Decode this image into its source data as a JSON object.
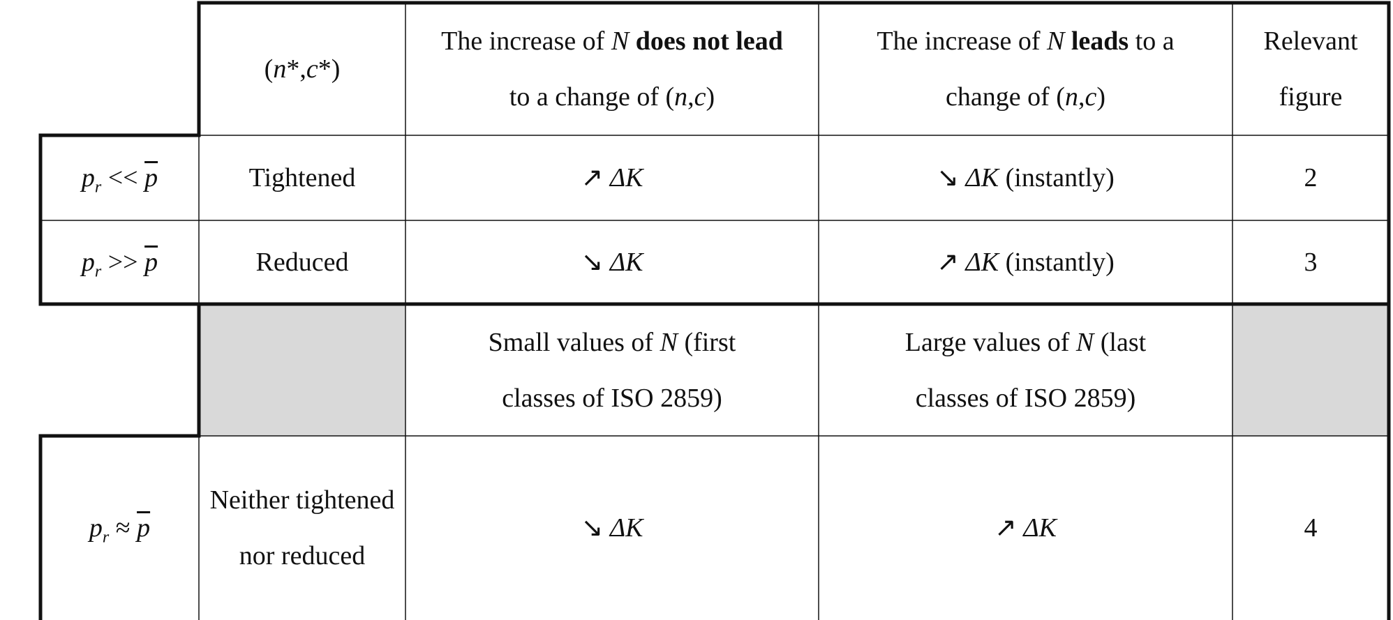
{
  "table": {
    "rows": [
      [
        [
          "(",
          "n",
          "*,",
          "c",
          "*)"
        ],
        [
          "The increase of ",
          "N",
          " does not lead",
          " to a change of (",
          "n",
          ",",
          "c",
          ")"
        ],
        [
          "The increase of ",
          "N",
          " leads",
          " to a change of (",
          "n",
          ",",
          "c",
          ")"
        ],
        [
          "Relevant figure"
        ]
      ],
      [
        [
          "p",
          "r",
          " << ",
          "p"
        ],
        [
          "Tightened"
        ],
        [
          "↗ ",
          "ΔK"
        ],
        [
          "↘ ",
          "ΔK",
          " (instantly)"
        ],
        [
          "2"
        ]
      ],
      [
        [
          "p",
          "r",
          " >> ",
          "p"
        ],
        [
          "Reduced"
        ],
        [
          "↘ ",
          "ΔK"
        ],
        [
          "↗ ",
          "ΔK",
          " (instantly)"
        ],
        [
          "3"
        ]
      ],
      [
        [
          "Small values of ",
          "N",
          " (first classes of ISO 2859)"
        ],
        [
          "Large values of ",
          "N",
          " (last classes of ISO 2859)"
        ]
      ],
      [
        [
          "p",
          "r",
          " ≈ ",
          "p"
        ],
        [
          "Neither tightened nor reduced"
        ],
        [
          "↘ ",
          "ΔK"
        ],
        [
          "↗ ",
          "ΔK"
        ],
        [
          "4"
        ]
      ]
    ]
  }
}
